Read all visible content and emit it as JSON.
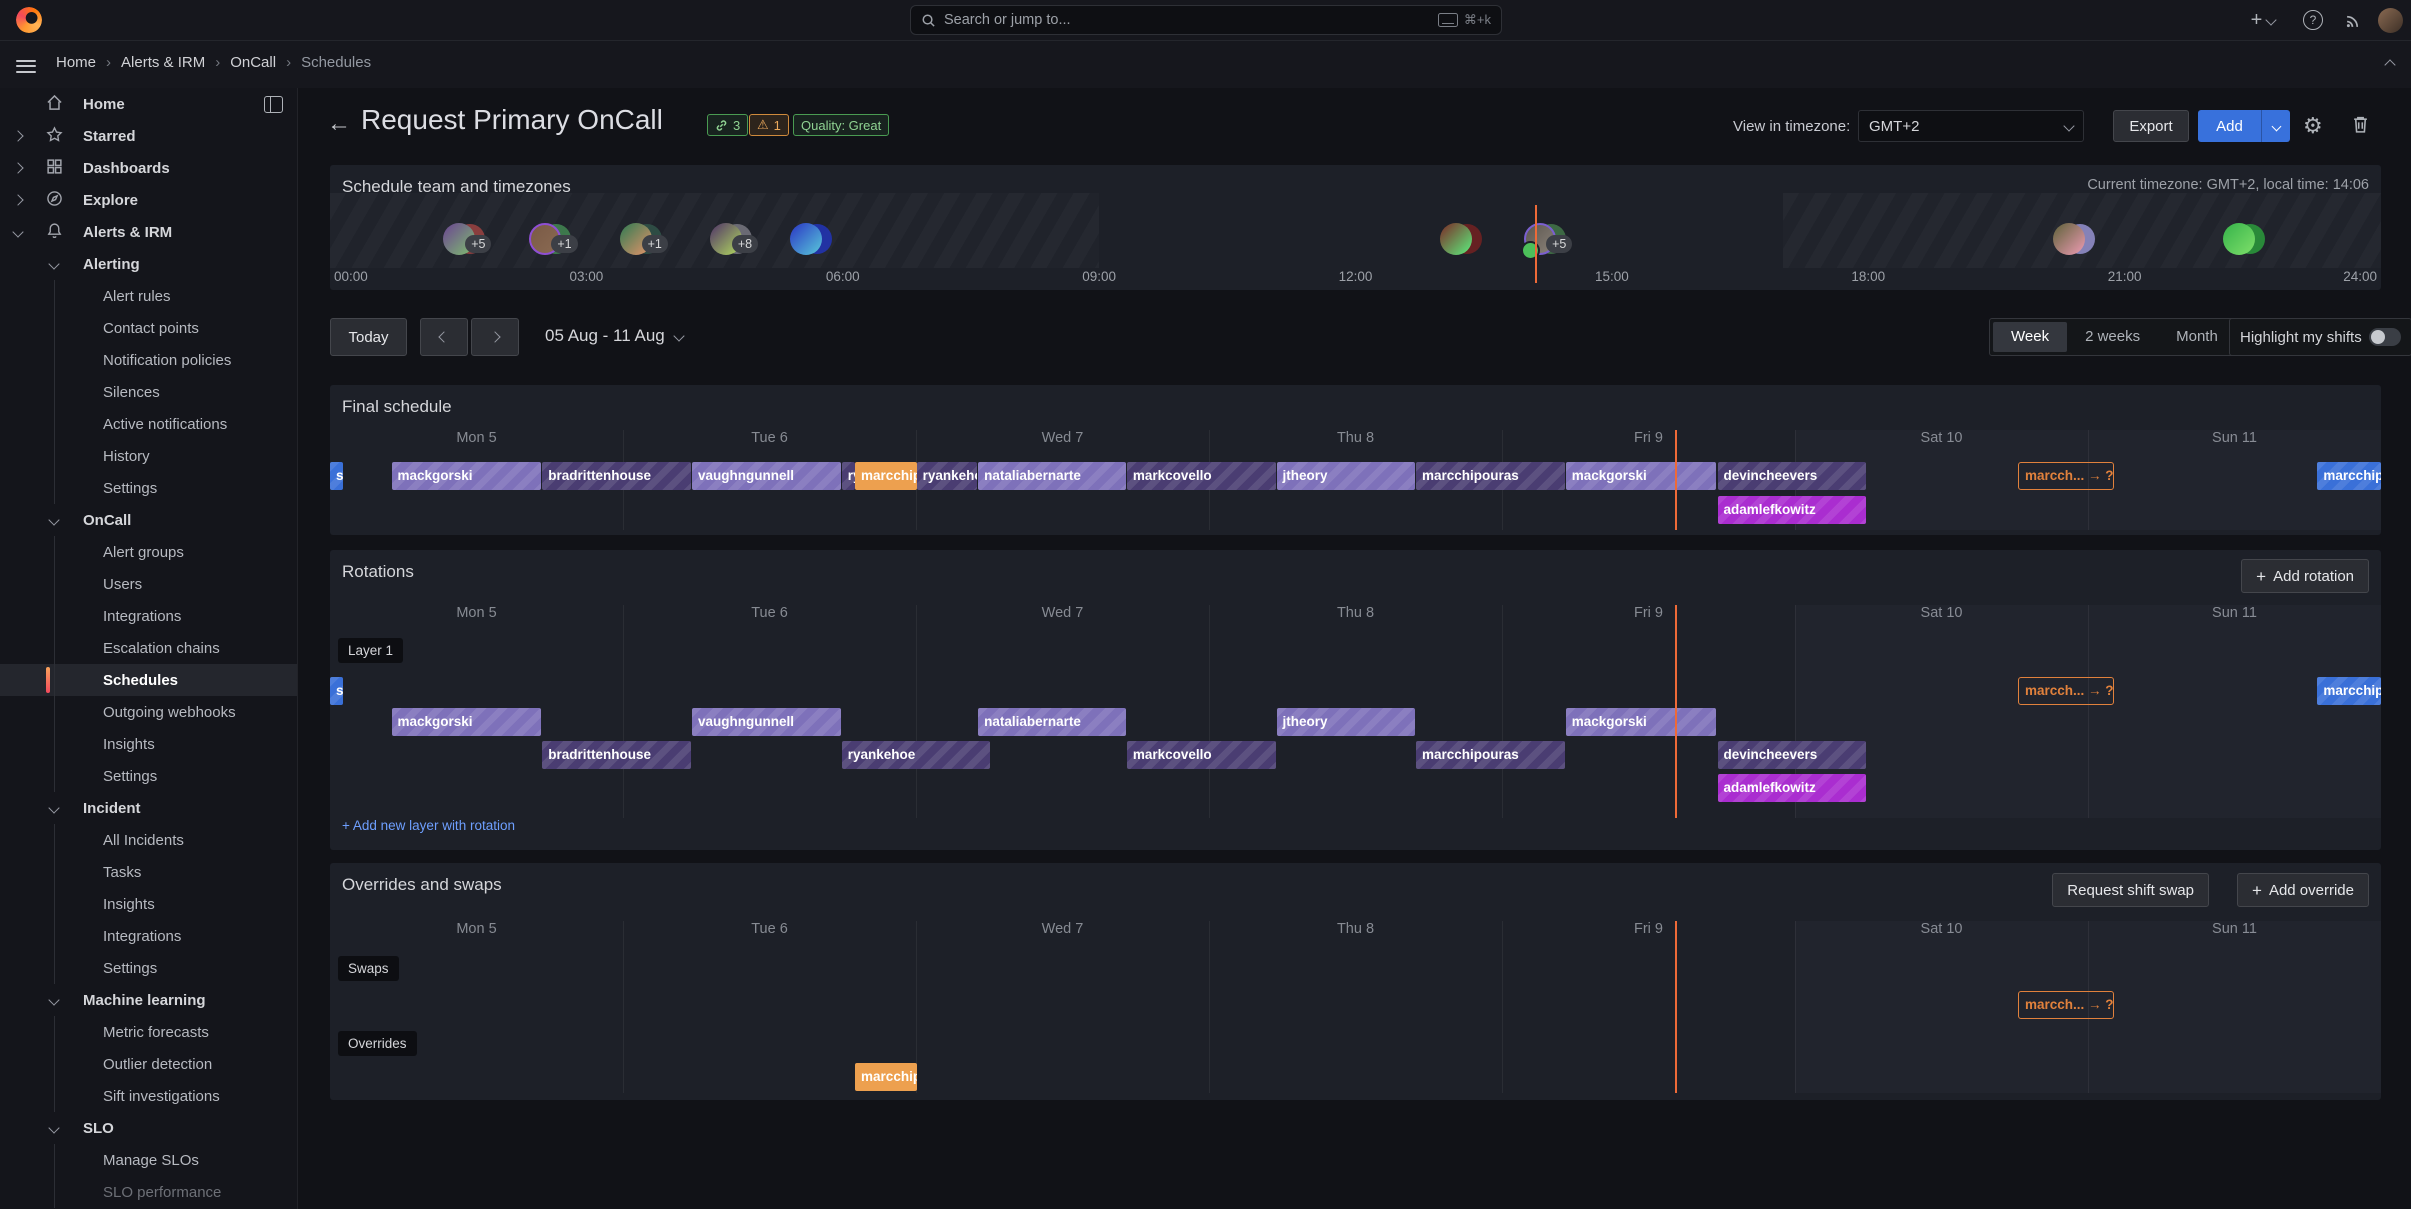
{
  "topbar": {
    "search_placeholder": "Search or jump to...",
    "search_shortcut": "⌘+k"
  },
  "breadcrumb": {
    "items": [
      "Home",
      "Alerts & IRM",
      "OnCall",
      "Schedules"
    ]
  },
  "sidebar": {
    "items": [
      {
        "label": "Home",
        "icon": "home",
        "level": 0
      },
      {
        "label": "Starred",
        "icon": "star",
        "level": 0,
        "chev": "r"
      },
      {
        "label": "Dashboards",
        "icon": "grid",
        "level": 0,
        "chev": "r"
      },
      {
        "label": "Explore",
        "icon": "compass",
        "level": 0,
        "chev": "r"
      },
      {
        "label": "Alerts & IRM",
        "icon": "bell",
        "level": 0,
        "chev": "d"
      },
      {
        "label": "Alerting",
        "level": 1,
        "chev": "d"
      },
      {
        "label": "Alert rules",
        "level": 2
      },
      {
        "label": "Contact points",
        "level": 2
      },
      {
        "label": "Notification policies",
        "level": 2
      },
      {
        "label": "Silences",
        "level": 2
      },
      {
        "label": "Active notifications",
        "level": 2
      },
      {
        "label": "History",
        "level": 2
      },
      {
        "label": "Settings",
        "level": 2
      },
      {
        "label": "OnCall",
        "level": 1,
        "chev": "d"
      },
      {
        "label": "Alert groups",
        "level": 2
      },
      {
        "label": "Users",
        "level": 2
      },
      {
        "label": "Integrations",
        "level": 2
      },
      {
        "label": "Escalation chains",
        "level": 2
      },
      {
        "label": "Schedules",
        "level": 2,
        "selected": true
      },
      {
        "label": "Outgoing webhooks",
        "level": 2
      },
      {
        "label": "Insights",
        "level": 2
      },
      {
        "label": "Settings",
        "level": 2
      },
      {
        "label": "Incident",
        "level": 1,
        "chev": "d"
      },
      {
        "label": "All Incidents",
        "level": 2
      },
      {
        "label": "Tasks",
        "level": 2
      },
      {
        "label": "Insights",
        "level": 2
      },
      {
        "label": "Integrations",
        "level": 2
      },
      {
        "label": "Settings",
        "level": 2
      },
      {
        "label": "Machine learning",
        "level": 1,
        "chev": "d"
      },
      {
        "label": "Metric forecasts",
        "level": 2
      },
      {
        "label": "Outlier detection",
        "level": 2
      },
      {
        "label": "Sift investigations",
        "level": 2
      },
      {
        "label": "SLO",
        "level": 1,
        "chev": "d"
      },
      {
        "label": "Manage SLOs",
        "level": 2
      },
      {
        "label": "SLO performance",
        "level": 2,
        "muted": true
      }
    ]
  },
  "header": {
    "title": "Request Primary OnCall",
    "links_badge": "3",
    "warnings_badge": "1",
    "warning_glyph": "⚠",
    "quality_badge": "Quality: Great",
    "timezone_label": "View in timezone:",
    "timezone_value": "GMT+2",
    "export_label": "Export",
    "add_label": "Add"
  },
  "timezone_panel": {
    "title": "Schedule team and timezones",
    "current_tz_text": "Current timezone: GMT+2, local time: 14:06",
    "ticks": [
      "00:00",
      "03:00",
      "06:00",
      "09:00",
      "12:00",
      "15:00",
      "18:00",
      "21:00",
      "24:00"
    ],
    "now_pct": 58.75,
    "nonworking_pct": [
      [
        0,
        37.5
      ],
      [
        70.83,
        100
      ]
    ],
    "avatars": [
      {
        "pos_pct": 6.3,
        "badge": "+5",
        "c1": "#6b4292",
        "c2": "#7fc06f",
        "b": "#8f3f3f"
      },
      {
        "pos_pct": 10.5,
        "badge": "+1",
        "c1": "#7a5a46",
        "c2": "#8a6a52",
        "b": "#3f7d4e",
        "ring": "#8f4fd4"
      },
      {
        "pos_pct": 14.9,
        "badge": "+1",
        "c1": "#2e7a52",
        "c2": "#e8946a",
        "b": "#2f4f46"
      },
      {
        "pos_pct": 19.3,
        "badge": "+8",
        "c1": "#4e3168",
        "c2": "#b4dd5f",
        "b": "#6f6f78"
      },
      {
        "pos_pct": 23.2,
        "badge": "",
        "c1": "#2a34c4",
        "c2": "#58c9da",
        "b": "#2233aa"
      },
      {
        "pos_pct": 54.9,
        "badge": "",
        "c1": "#7c2726",
        "c2": "#5cf07e",
        "b": "#6a2222"
      },
      {
        "pos_pct": 59.0,
        "badge": "+5",
        "c1": "#5c5650",
        "c2": "#8a8278",
        "b": "#3f6e46",
        "ring": "#7a5fd0",
        "phone": true
      },
      {
        "pos_pct": 84.8,
        "badge": "",
        "c1": "#5c6138",
        "c2": "#ef9cb4",
        "b": "#8a87c0"
      },
      {
        "pos_pct": 93.1,
        "badge": "",
        "c1": "#35b24a",
        "c2": "#7fe06a",
        "b": "#2a8f3a"
      }
    ]
  },
  "toolbar": {
    "today_label": "Today",
    "range_label": "05 Aug - 11 Aug",
    "views": [
      "Week",
      "2 weeks",
      "Month"
    ],
    "selected_view": "Week",
    "highlight_label": "Highlight my shifts"
  },
  "days": [
    "Mon 5",
    "Tue 6",
    "Wed 7",
    "Thu 8",
    "Fri 9",
    "Sat 10",
    "Sun 11"
  ],
  "now_pct": 65.6,
  "final_schedule": {
    "title": "Final schedule",
    "rows": [
      [
        {
          "label": "s",
          "color": "bl",
          "start": 0,
          "end": 0.65
        },
        {
          "label": "mackgorski",
          "color": "lp",
          "start": 3.0,
          "end": 10.3
        },
        {
          "label": "bradrittenhouse",
          "color": "dp",
          "start": 10.35,
          "end": 17.6
        },
        {
          "label": "vaughngunnell",
          "color": "lp",
          "start": 17.65,
          "end": 24.9
        },
        {
          "label": "rya",
          "color": "dp",
          "start": 24.95,
          "end": 25.6
        },
        {
          "label": "marcchip",
          "color": "or",
          "start": 25.6,
          "end": 28.6
        },
        {
          "label": "ryankehoe",
          "color": "dp",
          "start": 28.6,
          "end": 31.55
        },
        {
          "label": "nataliabernarte",
          "color": "lp",
          "start": 31.6,
          "end": 38.8
        },
        {
          "label": "markcovello",
          "color": "dp",
          "start": 38.85,
          "end": 46.1
        },
        {
          "label": "jtheory",
          "color": "lp",
          "start": 46.15,
          "end": 52.9
        },
        {
          "label": "marcchipouras",
          "color": "dp",
          "start": 52.95,
          "end": 60.2
        },
        {
          "label": "mackgorski",
          "color": "lp",
          "start": 60.25,
          "end": 67.6
        },
        {
          "label": "devincheevers",
          "color": "dp",
          "start": 67.65,
          "end": 74.9
        },
        {
          "label": "marcch... → ?",
          "color": "swap",
          "start": 82.3,
          "end": 87.0
        },
        {
          "label": "marcchipouras",
          "color": "bl",
          "start": 96.9,
          "end": 100
        }
      ],
      [
        {
          "label": "adamlefkowitz",
          "color": "mg",
          "start": 67.65,
          "end": 74.9
        }
      ]
    ]
  },
  "rotations": {
    "title": "Rotations",
    "add_rotation_label": "Add rotation",
    "layer_label": "Layer 1",
    "add_layer_label": "+ Add new layer with rotation",
    "rows": [
      [
        {
          "label": "s",
          "color": "bl",
          "start": 0,
          "end": 0.65
        },
        {
          "label": "marcch... → ?",
          "color": "swap",
          "start": 82.3,
          "end": 87.0
        },
        {
          "label": "marcchipouras",
          "color": "bl",
          "start": 96.9,
          "end": 100
        }
      ],
      [
        {
          "label": "mackgorski",
          "color": "lp",
          "start": 3.0,
          "end": 10.3
        },
        {
          "label": "vaughngunnell",
          "color": "lp",
          "start": 17.65,
          "end": 24.9
        },
        {
          "label": "nataliabernarte",
          "color": "lp",
          "start": 31.6,
          "end": 38.8
        },
        {
          "label": "jtheory",
          "color": "lp",
          "start": 46.15,
          "end": 52.9
        },
        {
          "label": "mackgorski",
          "color": "lp",
          "start": 60.25,
          "end": 67.6
        }
      ],
      [
        {
          "label": "bradrittenhouse",
          "color": "dp",
          "start": 10.35,
          "end": 17.6
        },
        {
          "label": "ryankehoe",
          "color": "dp",
          "start": 24.95,
          "end": 32.2
        },
        {
          "label": "markcovello",
          "color": "dp",
          "start": 38.85,
          "end": 46.1
        },
        {
          "label": "marcchipouras",
          "color": "dp",
          "start": 52.95,
          "end": 60.2
        },
        {
          "label": "devincheevers",
          "color": "dp",
          "start": 67.65,
          "end": 74.9
        }
      ],
      [
        {
          "label": "adamlefkowitz",
          "color": "mg",
          "start": 67.65,
          "end": 74.9
        }
      ]
    ]
  },
  "overrides_panel": {
    "title": "Overrides and swaps",
    "request_swap_label": "Request shift swap",
    "add_override_label": "Add override",
    "swaps_label": "Swaps",
    "overrides_label": "Overrides",
    "swap_row": [
      {
        "label": "marcch... → ?",
        "color": "swap",
        "start": 82.3,
        "end": 87.0
      }
    ],
    "override_row": [
      {
        "label": "marcchipouras",
        "color": "or",
        "start": 25.6,
        "end": 28.6
      }
    ]
  },
  "colors": {
    "light_purple": "#7e71ba",
    "dark_purple": "#4a3d72",
    "override_orange": "#eda04f",
    "magenta": "#aa2dd0",
    "blue": "#3a70d8",
    "swap_orange": "#e1813c",
    "now_line": "#ee6a38",
    "accent_blue": "#3871dc",
    "selected_accent": "#f55f3c"
  }
}
